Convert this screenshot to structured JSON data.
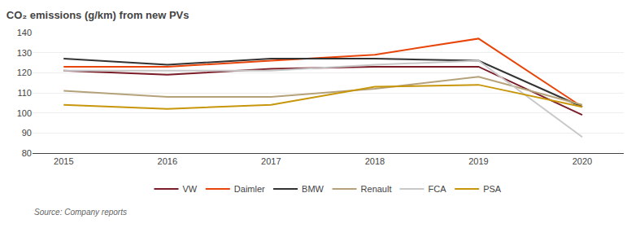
{
  "chart_data": {
    "type": "line",
    "title": "CO₂ emissions (g/km) from new PVs",
    "source": "Source: Company reports",
    "x": [
      2015,
      2016,
      2017,
      2018,
      2019,
      2020
    ],
    "series": [
      {
        "name": "VW",
        "color": "#7B1D28",
        "values": [
          121,
          119,
          122,
          123,
          123,
          99
        ]
      },
      {
        "name": "Daimler",
        "color": "#E8450A",
        "values": [
          123,
          123,
          126,
          129,
          137,
          103
        ]
      },
      {
        "name": "BMW",
        "color": "#333333",
        "values": [
          127,
          124,
          127,
          127,
          126,
          103
        ]
      },
      {
        "name": "Renault",
        "color": "#B5A27A",
        "values": [
          111,
          108,
          108,
          112,
          118,
          104
        ]
      },
      {
        "name": "FCA",
        "color": "#C8C8C8",
        "values": [
          121,
          121,
          121,
          124,
          126,
          88
        ]
      },
      {
        "name": "PSA",
        "color": "#C8960A",
        "values": [
          104,
          102,
          104,
          113,
          114,
          103
        ]
      }
    ],
    "xlim": [
      2014.7,
      2020.4
    ],
    "xticks": [
      2015,
      2016,
      2017,
      2018,
      2019,
      2020
    ],
    "ylim": [
      80,
      140
    ],
    "yticks": [
      80,
      90,
      100,
      110,
      120,
      130,
      140
    ],
    "grid": "y",
    "legend": "bottom"
  }
}
